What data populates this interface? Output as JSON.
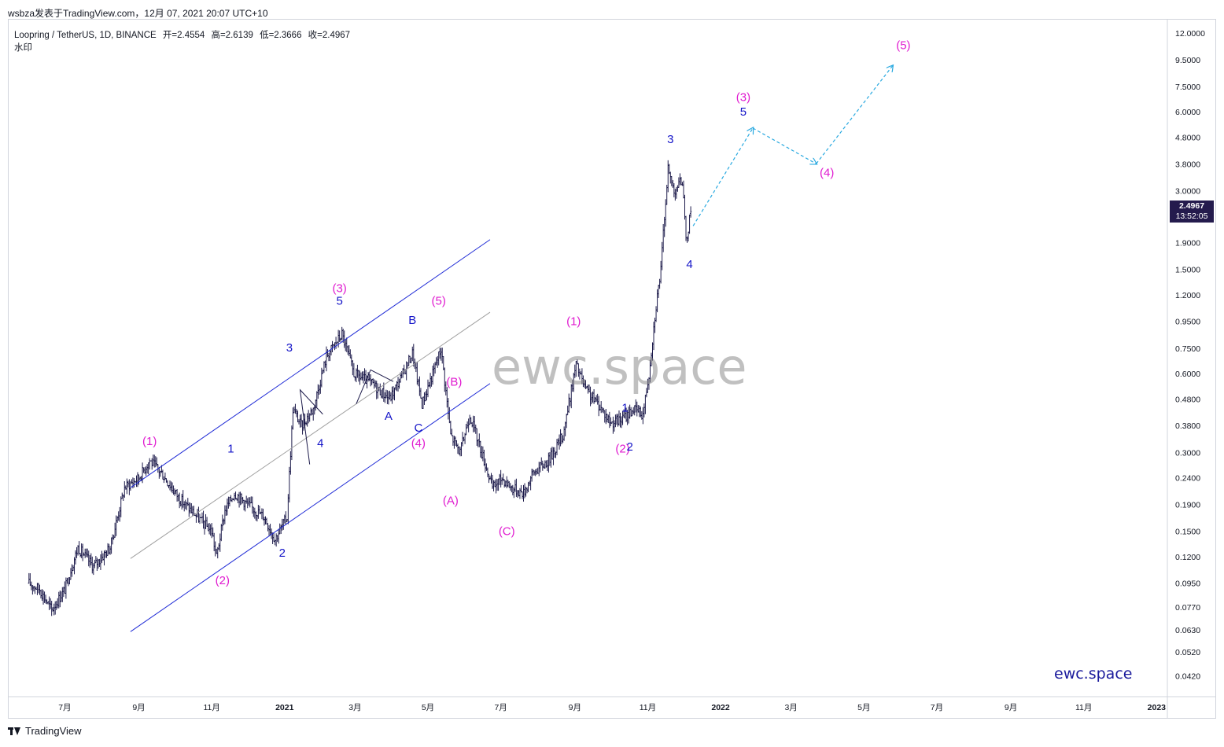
{
  "header": {
    "caption": "wsbza发表于TradingView.com，12月 07, 2021 20:07 UTC+10"
  },
  "symbol": {
    "name": "Loopring / TetherUS, 1D, BINANCE",
    "open": "开=2.4554",
    "high": "高=2.6139",
    "low": "低=2.3666",
    "close": "收=2.4967",
    "watermark_label": "水印"
  },
  "watermark": "ewc.space",
  "brand": "ewc.space",
  "price_tag": {
    "price": "2.4967",
    "countdown": "13:52:05"
  },
  "footer": {
    "brand": "TradingView"
  },
  "colors": {
    "wave_magenta": "#e01bd0",
    "wave_blue": "#1414c8",
    "channel_blue": "#1f2bd6",
    "projection": "#29a9e0",
    "candles": "#1c1a4a"
  },
  "chart_data": {
    "type": "candlestick",
    "scale": "log",
    "ylim": [
      0.035,
      13.5
    ],
    "x_range": [
      "2020-05-15",
      "2023-01-10"
    ],
    "y_ticks": [
      "12.0000",
      "9.5000",
      "7.5000",
      "6.0000",
      "4.8000",
      "3.8000",
      "3.0000",
      "1.9000",
      "1.5000",
      "1.2000",
      "0.9500",
      "0.7500",
      "0.6000",
      "0.4800",
      "0.3800",
      "0.3000",
      "0.2400",
      "0.1900",
      "0.1500",
      "0.1200",
      "0.0950",
      "0.0770",
      "0.0630",
      "0.0520",
      "0.0420"
    ],
    "x_ticks": [
      "7月",
      "9月",
      "11月",
      "2021",
      "3月",
      "5月",
      "7月",
      "9月",
      "11月",
      "2022",
      "3月",
      "5月",
      "7月",
      "9月",
      "11月",
      "2023"
    ],
    "price_path": [
      [
        "2020-06-01",
        0.095
      ],
      [
        "2020-06-10",
        0.09
      ],
      [
        "2020-06-20",
        0.075
      ],
      [
        "2020-07-01",
        0.09
      ],
      [
        "2020-07-12",
        0.13
      ],
      [
        "2020-07-25",
        0.11
      ],
      [
        "2020-08-08",
        0.13
      ],
      [
        "2020-08-20",
        0.22
      ],
      [
        "2020-09-01",
        0.24
      ],
      [
        "2020-09-10",
        0.28
      ],
      [
        "2020-09-20",
        0.25
      ],
      [
        "2020-10-05",
        0.2
      ],
      [
        "2020-10-20",
        0.17
      ],
      [
        "2020-11-01",
        0.15
      ],
      [
        "2020-11-05",
        0.12
      ],
      [
        "2020-11-12",
        0.18
      ],
      [
        "2020-11-20",
        0.21
      ],
      [
        "2020-12-01",
        0.19
      ],
      [
        "2020-12-15",
        0.17
      ],
      [
        "2020-12-24",
        0.14
      ],
      [
        "2021-01-03",
        0.17
      ],
      [
        "2021-01-08",
        0.44
      ],
      [
        "2021-01-15",
        0.38
      ],
      [
        "2021-01-25",
        0.44
      ],
      [
        "2021-02-05",
        0.7
      ],
      [
        "2021-02-18",
        0.85
      ],
      [
        "2021-02-28",
        0.6
      ],
      [
        "2021-03-15",
        0.55
      ],
      [
        "2021-03-30",
        0.48
      ],
      [
        "2021-04-10",
        0.6
      ],
      [
        "2021-04-18",
        0.72
      ],
      [
        "2021-04-26",
        0.46
      ],
      [
        "2021-05-05",
        0.6
      ],
      [
        "2021-05-12",
        0.75
      ],
      [
        "2021-05-20",
        0.35
      ],
      [
        "2021-05-28",
        0.3
      ],
      [
        "2021-06-05",
        0.42
      ],
      [
        "2021-06-15",
        0.3
      ],
      [
        "2021-06-24",
        0.22
      ],
      [
        "2021-07-02",
        0.24
      ],
      [
        "2021-07-10",
        0.22
      ],
      [
        "2021-07-20",
        0.21
      ],
      [
        "2021-07-28",
        0.25
      ],
      [
        "2021-08-10",
        0.28
      ],
      [
        "2021-08-22",
        0.35
      ],
      [
        "2021-09-02",
        0.65
      ],
      [
        "2021-09-10",
        0.52
      ],
      [
        "2021-09-22",
        0.45
      ],
      [
        "2021-10-01",
        0.39
      ],
      [
        "2021-10-10",
        0.4
      ],
      [
        "2021-10-20",
        0.44
      ],
      [
        "2021-10-28",
        0.42
      ],
      [
        "2021-11-02",
        0.6
      ],
      [
        "2021-11-08",
        1.1
      ],
      [
        "2021-11-12",
        1.5
      ],
      [
        "2021-11-15",
        2.4
      ],
      [
        "2021-11-18",
        3.6
      ],
      [
        "2021-11-23",
        3.0
      ],
      [
        "2021-11-30",
        3.3
      ],
      [
        "2021-12-03",
        1.9
      ],
      [
        "2021-12-07",
        2.4967
      ]
    ],
    "projection": [
      [
        "2021-12-09",
        2.2
      ],
      [
        "2022-01-28",
        5.2
      ],
      [
        "2022-03-22",
        3.8
      ],
      [
        "2022-05-25",
        9.0
      ]
    ],
    "channel_upper": [
      [
        "2020-08-25",
        0.22
      ],
      [
        "2021-06-22",
        1.95
      ]
    ],
    "channel_lower": [
      [
        "2020-08-25",
        0.062
      ],
      [
        "2021-06-22",
        0.55
      ]
    ],
    "channel_mid": [
      [
        "2020-08-25",
        0.118
      ],
      [
        "2021-06-22",
        1.03
      ]
    ],
    "labels": [
      {
        "text": "(1)",
        "date": "2020-09-10",
        "price": 0.32,
        "color": "magenta"
      },
      {
        "text": "(2)",
        "date": "2020-11-10",
        "price": 0.094,
        "color": "magenta"
      },
      {
        "text": "1",
        "date": "2020-11-17",
        "price": 0.3,
        "color": "blue"
      },
      {
        "text": "2",
        "date": "2020-12-30",
        "price": 0.12,
        "color": "blue"
      },
      {
        "text": "3",
        "date": "2021-01-05",
        "price": 0.73,
        "color": "blue"
      },
      {
        "text": "4",
        "date": "2021-01-31",
        "price": 0.315,
        "color": "blue"
      },
      {
        "text": "(3)",
        "date": "2021-02-16",
        "price": 1.23,
        "color": "magenta"
      },
      {
        "text": "5",
        "date": "2021-02-16",
        "price": 1.1,
        "color": "blue"
      },
      {
        "text": "A",
        "date": "2021-03-29",
        "price": 0.4,
        "color": "blue"
      },
      {
        "text": "B",
        "date": "2021-04-18",
        "price": 0.93,
        "color": "blue"
      },
      {
        "text": "C",
        "date": "2021-04-23",
        "price": 0.36,
        "color": "blue"
      },
      {
        "text": "(4)",
        "date": "2021-04-23",
        "price": 0.315,
        "color": "magenta"
      },
      {
        "text": "(5)",
        "date": "2021-05-10",
        "price": 1.1,
        "color": "magenta"
      },
      {
        "text": "(B)",
        "date": "2021-05-23",
        "price": 0.54,
        "color": "magenta"
      },
      {
        "text": "(A)",
        "date": "2021-05-20",
        "price": 0.19,
        "color": "magenta"
      },
      {
        "text": "(C)",
        "date": "2021-07-06",
        "price": 0.145,
        "color": "magenta"
      },
      {
        "text": "(1)",
        "date": "2021-08-31",
        "price": 0.92,
        "color": "magenta"
      },
      {
        "text": "(2)",
        "date": "2021-10-11",
        "price": 0.3,
        "color": "magenta"
      },
      {
        "text": "1",
        "date": "2021-10-13",
        "price": 0.43,
        "color": "blue"
      },
      {
        "text": "2",
        "date": "2021-10-17",
        "price": 0.305,
        "color": "blue"
      },
      {
        "text": "3",
        "date": "2021-11-20",
        "price": 4.55,
        "color": "blue"
      },
      {
        "text": "4",
        "date": "2021-12-06",
        "price": 1.52,
        "color": "blue"
      },
      {
        "text": "(3)",
        "date": "2022-01-20",
        "price": 6.6,
        "color": "magenta"
      },
      {
        "text": "5",
        "date": "2022-01-20",
        "price": 5.8,
        "color": "blue"
      },
      {
        "text": "(4)",
        "date": "2022-03-31",
        "price": 3.4,
        "color": "magenta"
      },
      {
        "text": "(5)",
        "date": "2022-06-03",
        "price": 10.4,
        "color": "magenta"
      }
    ]
  }
}
